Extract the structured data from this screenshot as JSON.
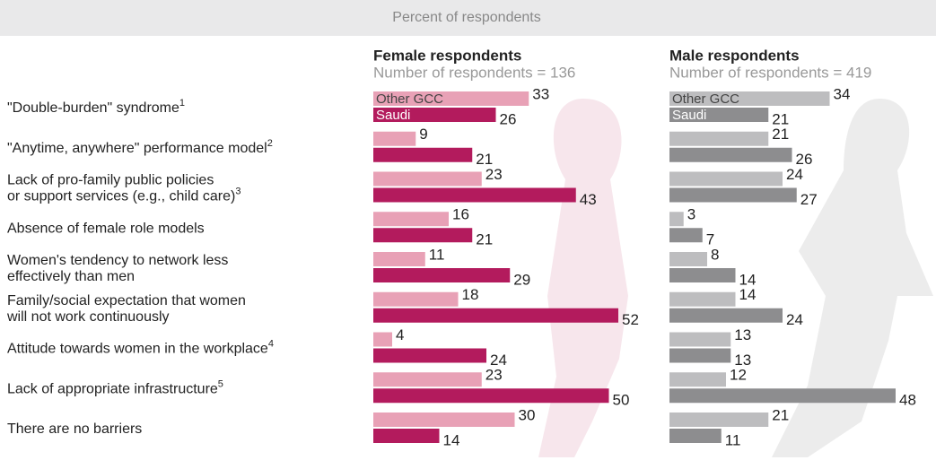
{
  "chart_data": {
    "type": "bar",
    "subtitle": "Percent of respondents",
    "categories": [
      [
        "\"Double-burden\" syndrome"
      ],
      [
        "\"Anytime, anywhere\" performance model"
      ],
      [
        "Lack of pro-family public policies",
        "or support services (e.g., child care)"
      ],
      [
        "Absence of female role models"
      ],
      [
        "Women's tendency to network less",
        "effectively than men"
      ],
      [
        "Family/social expectation that women",
        "will not work continuously"
      ],
      [
        "Attitude towards women in the workplace"
      ],
      [
        "Lack of appropriate infrastructure"
      ],
      [
        "There are no barriers"
      ]
    ],
    "category_notes": [
      "1",
      "2",
      "3",
      null,
      null,
      null,
      "4",
      "5",
      null
    ],
    "panels": [
      {
        "title": "Female respondents",
        "subtitle": "Number of respondents = 136",
        "series": [
          {
            "name": "Other GCC",
            "color": "#e8a1b6",
            "values": [
              33,
              9,
              23,
              16,
              11,
              18,
              4,
              23,
              30
            ]
          },
          {
            "name": "Saudi",
            "color": "#b31b5d",
            "values": [
              26,
              21,
              43,
              21,
              29,
              52,
              24,
              50,
              14
            ]
          }
        ]
      },
      {
        "title": "Male respondents",
        "subtitle": "Number of respondents = 419",
        "series": [
          {
            "name": "Other GCC",
            "color": "#bdbdbf",
            "values": [
              34,
              21,
              24,
              3,
              8,
              14,
              13,
              12,
              21
            ]
          },
          {
            "name": "Saudi",
            "color": "#8d8d8f",
            "values": [
              21,
              26,
              27,
              7,
              14,
              24,
              13,
              48,
              11
            ]
          }
        ]
      }
    ]
  }
}
